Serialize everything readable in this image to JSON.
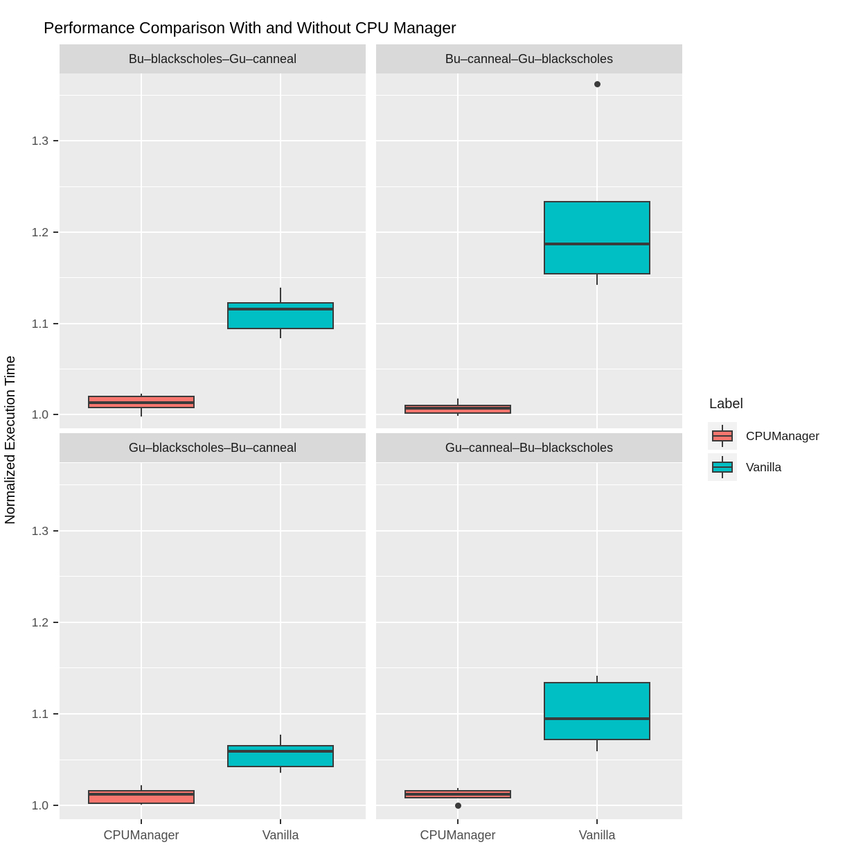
{
  "chart_data": {
    "type": "boxplot",
    "title": "Performance Comparison With and Without CPU Manager",
    "ylabel": "Normalized Execution Time",
    "xlabel": "",
    "categories": [
      "CPUManager",
      "Vanilla"
    ],
    "y_domain": [
      0.985,
      1.374
    ],
    "y_major_ticks": [
      {
        "label": "1.0",
        "value": 1.0
      },
      {
        "label": "1.1",
        "value": 1.1
      },
      {
        "label": "1.2",
        "value": 1.2
      },
      {
        "label": "1.3",
        "value": 1.3
      }
    ],
    "y_minor_ticks": [
      1.05,
      1.15,
      1.25,
      1.35
    ],
    "grid": true,
    "legend": {
      "title": "Label",
      "position": "right",
      "items": [
        {
          "label": "CPUManager",
          "color": "#F8766D"
        },
        {
          "label": "Vanilla",
          "color": "#00BFC4"
        }
      ]
    },
    "facets": [
      {
        "label": "Bu–blackscholes–Gu–canneal",
        "boxes": [
          {
            "group": "CPUManager",
            "min": 0.998,
            "q1": 1.007,
            "median": 1.013,
            "q3": 1.021,
            "max": 1.023,
            "outliers": []
          },
          {
            "group": "Vanilla",
            "min": 1.084,
            "q1": 1.094,
            "median": 1.116,
            "q3": 1.123,
            "max": 1.139,
            "outliers": []
          }
        ]
      },
      {
        "label": "Bu–canneal–Gu–blackscholes",
        "boxes": [
          {
            "group": "CPUManager",
            "min": 0.999,
            "q1": 1.001,
            "median": 1.007,
            "q3": 1.011,
            "max": 1.018,
            "outliers": []
          },
          {
            "group": "Vanilla",
            "min": 1.142,
            "q1": 1.154,
            "median": 1.187,
            "q3": 1.234,
            "max": 1.234,
            "outliers": [
              1.362
            ]
          }
        ]
      },
      {
        "label": "Gu–blackscholes–Bu–canneal",
        "boxes": [
          {
            "group": "CPUManager",
            "min": 1.001,
            "q1": 1.002,
            "median": 1.012,
            "q3": 1.017,
            "max": 1.022,
            "outliers": []
          },
          {
            "group": "Vanilla",
            "min": 1.036,
            "q1": 1.042,
            "median": 1.059,
            "q3": 1.066,
            "max": 1.077,
            "outliers": []
          }
        ]
      },
      {
        "label": "Gu–canneal–Bu–blackscholes",
        "boxes": [
          {
            "group": "CPUManager",
            "min": 1.008,
            "q1": 1.008,
            "median": 1.012,
            "q3": 1.017,
            "max": 1.019,
            "outliers": [
              1.0
            ]
          },
          {
            "group": "Vanilla",
            "min": 1.059,
            "q1": 1.071,
            "median": 1.095,
            "q3": 1.135,
            "max": 1.142,
            "outliers": []
          }
        ]
      }
    ],
    "theme": {
      "panel_bg": "#EBEBEB",
      "strip_bg": "#D9D9D9",
      "grid_color": "#FFFFFF",
      "box_line_color": "#3B3B3B",
      "axis_text_color": "#4D4D4D",
      "legend_key_bg": "#F2F2F2"
    }
  }
}
